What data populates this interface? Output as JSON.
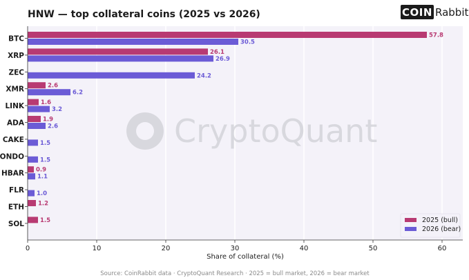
{
  "title": "HNW — top collateral coins (2025 vs 2026)",
  "logo": {
    "bold": "COIN",
    "light": "Rabbit"
  },
  "watermark": "CryptoQuant",
  "source_note": "Source: CoinRabbit data · CryptoQuant Research · 2025 = bull market, 2026 = bear market",
  "colors": {
    "bull": "#b83a72",
    "bear": "#6b5bd6",
    "plot_bg": "#f4f2f9"
  },
  "chart_data": {
    "type": "bar",
    "orientation": "horizontal",
    "title": "HNW — top collateral coins (2025 vs 2026)",
    "xlabel": "Share of collateral (%)",
    "ylabel": "",
    "xlim": [
      0,
      63
    ],
    "xticks": [
      0,
      10,
      20,
      30,
      40,
      50,
      60
    ],
    "grid": true,
    "legend_position": "bottom-right",
    "categories": [
      "BTC",
      "XRP",
      "ZEC",
      "XMR",
      "LINK",
      "ADA",
      "CAKE",
      "ONDO",
      "HBAR",
      "FLR",
      "ETH",
      "SOL"
    ],
    "series": [
      {
        "name": "2025 (bull)",
        "color": "#b83a72",
        "values": [
          57.8,
          26.1,
          null,
          2.6,
          1.6,
          1.9,
          null,
          null,
          0.9,
          null,
          1.2,
          1.5
        ]
      },
      {
        "name": "2026 (bear)",
        "color": "#6b5bd6",
        "values": [
          30.5,
          26.9,
          24.2,
          6.2,
          3.2,
          2.6,
          1.5,
          1.5,
          1.1,
          1.0,
          null,
          null
        ]
      }
    ]
  }
}
